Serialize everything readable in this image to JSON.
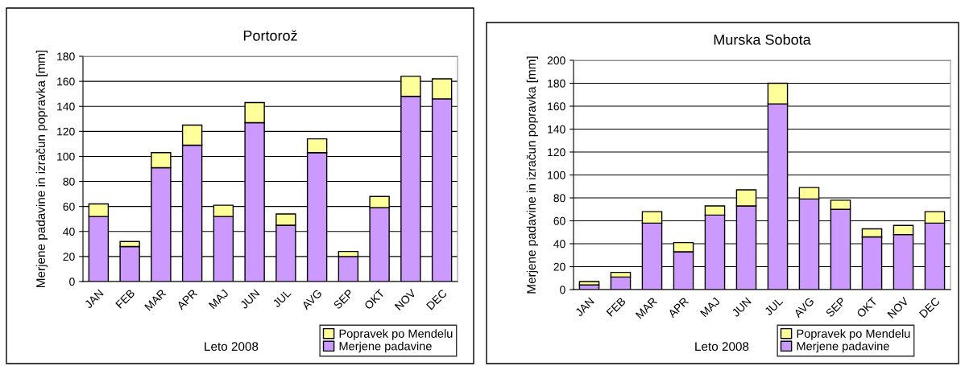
{
  "chart_data": [
    {
      "type": "bar",
      "title": "Portorož",
      "xlabel": "Leto 2008",
      "ylabel": "Merjene padavine in izračun popravka [mm]",
      "stacked": true,
      "grid": "y",
      "legend": "bottom",
      "categories": [
        "JAN",
        "FEB",
        "MAR",
        "APR",
        "MAJ",
        "JUN",
        "JUL",
        "AVG",
        "SEP",
        "OKT",
        "NOV",
        "DEC"
      ],
      "ylim": [
        0,
        180
      ],
      "yticks": [
        0,
        20,
        40,
        60,
        80,
        100,
        120,
        140,
        160,
        180
      ],
      "series": [
        {
          "name": "Merjene padavine",
          "color": "#cc99ff",
          "values": [
            52,
            28,
            91,
            109,
            52,
            127,
            45,
            103,
            20,
            59,
            148,
            146
          ]
        },
        {
          "name": "Popravek po Mendelu",
          "color": "#ffff99",
          "values": [
            10,
            4,
            12,
            16,
            9,
            16,
            9,
            11,
            4,
            9,
            16,
            16
          ]
        }
      ]
    },
    {
      "type": "bar",
      "title": "Murska Sobota",
      "xlabel": "Leto 2008",
      "ylabel": "Merjene padavine in izračun popravka [mm]",
      "stacked": true,
      "grid": "y",
      "legend": "bottom",
      "categories": [
        "JAN",
        "FEB",
        "MAR",
        "APR",
        "MAJ",
        "JUN",
        "JUL",
        "AVG",
        "SEP",
        "OKT",
        "NOV",
        "DEC"
      ],
      "ylim": [
        0,
        200
      ],
      "yticks": [
        0,
        20,
        40,
        60,
        80,
        100,
        120,
        140,
        160,
        180,
        200
      ],
      "series": [
        {
          "name": "Merjene padavine",
          "color": "#cc99ff",
          "values": [
            4,
            11,
            58,
            33,
            65,
            73,
            162,
            79,
            70,
            46,
            48,
            58
          ]
        },
        {
          "name": "Popravek po Mendelu",
          "color": "#ffff99",
          "values": [
            3,
            4,
            10,
            8,
            8,
            14,
            18,
            10,
            8,
            7,
            8,
            10
          ]
        }
      ]
    }
  ]
}
